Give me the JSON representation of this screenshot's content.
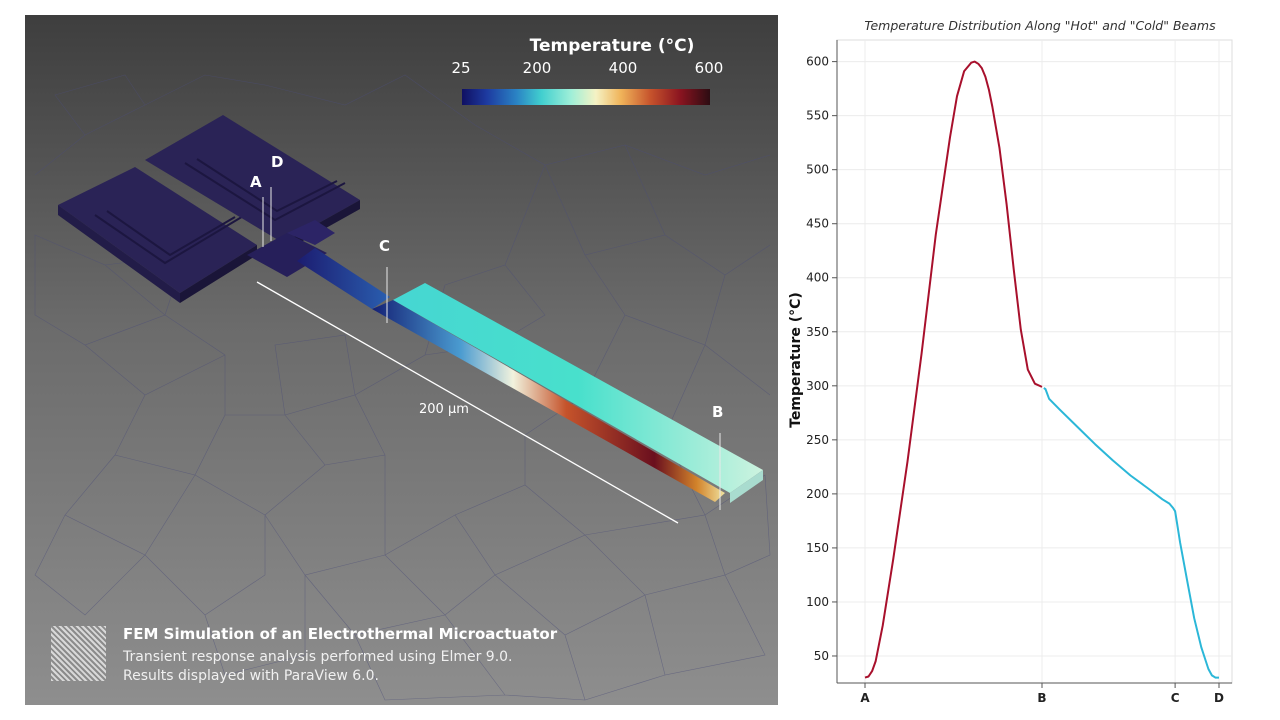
{
  "scene": {
    "colorbar": {
      "title": "Temperature (°C)",
      "ticks": [
        "25",
        "200",
        "400",
        "600"
      ]
    },
    "markers": {
      "a": "A",
      "b": "B",
      "c": "C",
      "d": "D"
    },
    "dimension_label": "200 µm",
    "caption": {
      "title": "FEM Simulation of an Electrothermal Microactuator",
      "line1": "Transient response analysis performed using Elmer 9.0.",
      "line2": "Results displayed with ParaView 6.0."
    },
    "colors": {
      "hot_beam_gradient_end": "#8a1420",
      "cold_beam": "#3fd3cc",
      "pads": "#2a2356"
    }
  },
  "chart_data": {
    "type": "line",
    "title": "Temperature Distribution Along \"Hot\" and \"Cold\" Beams",
    "xlabel": "",
    "ylabel": "Temperature (°C)",
    "ylim": [
      25,
      620
    ],
    "yticks": [
      50,
      100,
      150,
      200,
      250,
      300,
      350,
      400,
      450,
      500,
      550,
      600
    ],
    "xlim": [
      0,
      1
    ],
    "xtick_positions": [
      0.0,
      0.5,
      0.876,
      1.0
    ],
    "xticks": [
      "A",
      "B",
      "C",
      "D"
    ],
    "grid": true,
    "series": [
      {
        "color": "#a8102c",
        "x": [
          0.0,
          0.01,
          0.02,
          0.03,
          0.05,
          0.08,
          0.12,
          0.16,
          0.2,
          0.24,
          0.26,
          0.28,
          0.3,
          0.31,
          0.32,
          0.33,
          0.34,
          0.35,
          0.36,
          0.38,
          0.4,
          0.42,
          0.44,
          0.46,
          0.48,
          0.5
        ],
        "y": [
          30,
          31,
          36,
          45,
          78,
          140,
          230,
          330,
          440,
          530,
          568,
          591,
          599,
          600,
          598,
          594,
          586,
          574,
          558,
          520,
          468,
          408,
          352,
          315,
          302,
          299
        ]
      },
      {
        "color": "#2bb7d8",
        "x": [
          0.505,
          0.51,
          0.52,
          0.55,
          0.6,
          0.65,
          0.7,
          0.75,
          0.8,
          0.84,
          0.86,
          0.87,
          0.876,
          0.88,
          0.89,
          0.91,
          0.93,
          0.95,
          0.97,
          0.98,
          0.99,
          1.0
        ],
        "y": [
          298,
          297,
          288,
          278,
          262,
          246,
          231,
          217,
          205,
          195,
          191,
          187,
          184,
          176,
          155,
          120,
          85,
          58,
          38,
          32,
          30,
          30
        ]
      }
    ]
  }
}
